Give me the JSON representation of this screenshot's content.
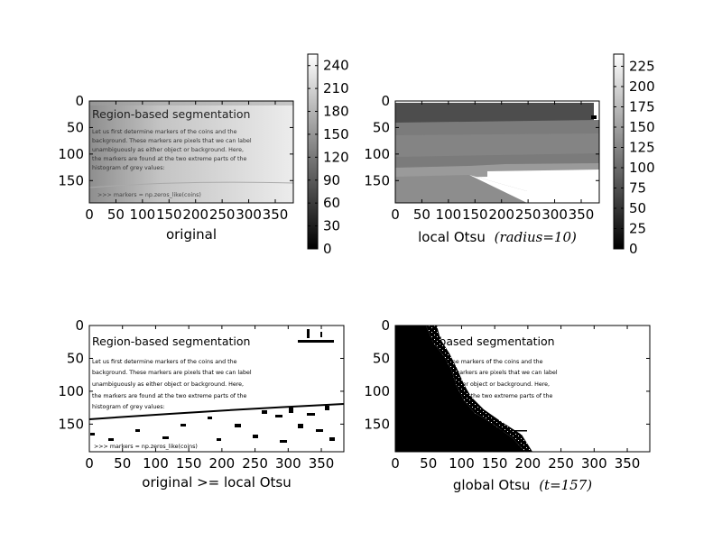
{
  "document_text": {
    "title": "Region-based segmentation",
    "title_partial": "n-based segmentation",
    "lines": [
      "Let us first determine markers of the coins and the",
      "background. These markers are pixels that we can label",
      "unambiguously as either object or background. Here,",
      "the markers are found at the two extreme parts of the",
      "histogram of grey values:"
    ],
    "code": ">>> markers = np.zeros_like(coins)"
  },
  "chart_data": [
    {
      "type": "image",
      "xlabel": "original",
      "x_ticks": [
        0,
        50,
        100,
        150,
        200,
        250,
        300,
        350
      ],
      "y_ticks": [
        0,
        50,
        100,
        150
      ],
      "xlim": [
        0,
        384
      ],
      "ylim": [
        192,
        0
      ],
      "colorbar": {
        "ticks": [
          0,
          30,
          60,
          90,
          120,
          150,
          180,
          210,
          240
        ],
        "range": [
          0,
          255
        ]
      }
    },
    {
      "type": "image",
      "xlabel": "local Otsu",
      "xlabel_math": "(radius=10)",
      "x_ticks": [
        0,
        50,
        100,
        150,
        200,
        250,
        300,
        350
      ],
      "y_ticks": [
        0,
        50,
        100,
        150
      ],
      "xlim": [
        0,
        384
      ],
      "ylim": [
        192,
        0
      ],
      "colorbar": {
        "ticks": [
          0,
          25,
          50,
          75,
          100,
          125,
          150,
          175,
          200,
          225
        ],
        "range": [
          0,
          240
        ]
      }
    },
    {
      "type": "image",
      "xlabel": "original >= local Otsu",
      "x_ticks": [
        0,
        50,
        100,
        150,
        200,
        250,
        300,
        350
      ],
      "y_ticks": [
        0,
        50,
        100,
        150
      ],
      "xlim": [
        0,
        384
      ],
      "ylim": [
        192,
        0
      ]
    },
    {
      "type": "image",
      "xlabel": "global Otsu",
      "xlabel_math": "(t=157)",
      "x_ticks": [
        0,
        50,
        100,
        150,
        200,
        250,
        300,
        350
      ],
      "y_ticks": [
        0,
        50,
        100,
        150
      ],
      "xlim": [
        0,
        384
      ],
      "ylim": [
        192,
        0
      ]
    }
  ]
}
